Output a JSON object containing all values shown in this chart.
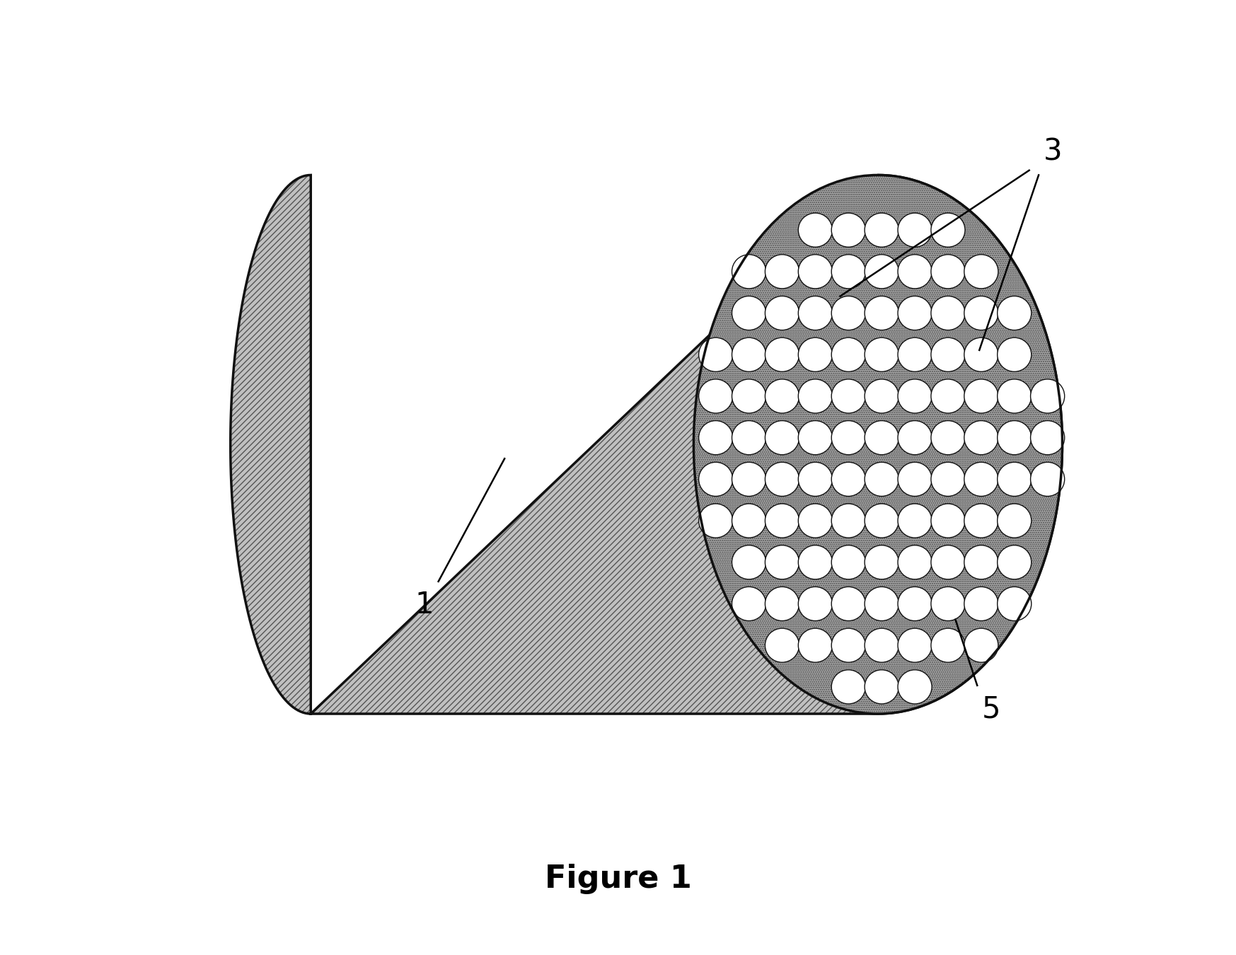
{
  "figure_title": "Figure 1",
  "title_fontsize": 32,
  "title_fontweight": "bold",
  "bg_color": "#ffffff",
  "body_fill_color": "#c0c0c0",
  "body_hatch_color": "#555555",
  "end_face_fill_color": "#aaaaaa",
  "channel_color": "#ffffff",
  "channel_edge_color": "#111111",
  "outline_color": "#111111",
  "label_1": "1",
  "label_3": "3",
  "label_5": "5",
  "label_fontsize": 30,
  "annotation_color": "#000000",
  "figsize": [
    17.47,
    13.5
  ],
  "dpi": 100
}
